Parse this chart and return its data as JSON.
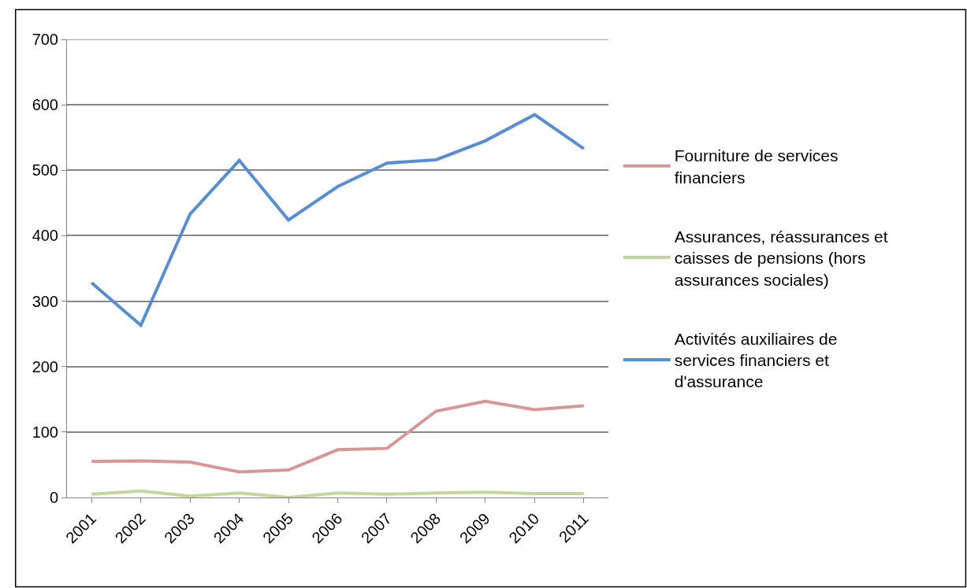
{
  "chart_data": {
    "type": "line",
    "categories": [
      "2001",
      "2002",
      "2003",
      "2004",
      "2005",
      "2006",
      "2007",
      "2008",
      "2009",
      "2010",
      "2011"
    ],
    "series": [
      {
        "name": "Fourniture de services financiers",
        "color": "#d99694",
        "values": [
          55,
          56,
          54,
          39,
          42,
          73,
          75,
          132,
          147,
          134,
          140
        ]
      },
      {
        "name": "Assurances, réassurances et caisses de pensions (hors assurances sociales)",
        "color": "#c3d69b",
        "values": [
          5,
          10,
          2,
          7,
          0,
          7,
          5,
          7,
          8,
          6,
          6
        ]
      },
      {
        "name": "Activités auxiliaires de services financiers et d'assurance",
        "color": "#558ed5",
        "values": [
          328,
          263,
          433,
          515,
          424,
          475,
          511,
          516,
          545,
          585,
          533
        ]
      }
    ],
    "ylim": [
      0,
      700
    ],
    "yticks": [
      0,
      100,
      200,
      300,
      400,
      500,
      600,
      700
    ],
    "grid": "y",
    "legend": "right",
    "marker": "none",
    "line_style": "solid"
  }
}
